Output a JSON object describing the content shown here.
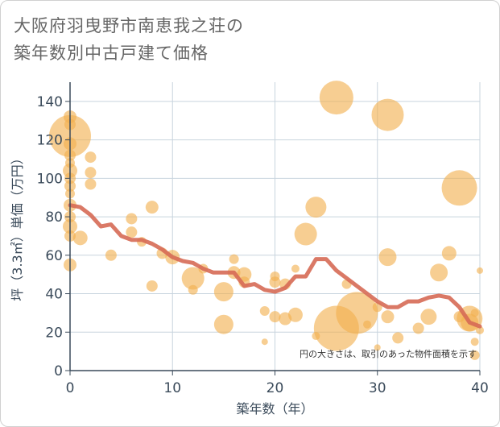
{
  "title_lines": [
    "大阪府羽曳野市南恵我之荘の",
    "築年数別中古戸建て価格"
  ],
  "chart_data": {
    "type": "scatter",
    "title": "大阪府羽曳野市南恵我之荘の築年数別中古戸建て価格",
    "xlabel": "築年数（年）",
    "ylabel": "坪（3.3㎡）単価（万円）",
    "note": "円の大きさは、取引のあった物件面積を示す",
    "xlim": [
      0,
      40
    ],
    "ylim": [
      0,
      150
    ],
    "xticks": [
      0,
      10,
      20,
      30,
      40
    ],
    "yticks": [
      0,
      20,
      40,
      60,
      80,
      100,
      120,
      140
    ],
    "grid": true,
    "colors": {
      "bubble": "#f2b04f",
      "line": "#d66a55",
      "grid": "#c8d4de",
      "axis": "#3a4a5a"
    },
    "points": [
      {
        "x": 0,
        "y": 132,
        "s": 8
      },
      {
        "x": 0,
        "y": 128,
        "s": 7
      },
      {
        "x": 0,
        "y": 122,
        "s": 26
      },
      {
        "x": 0,
        "y": 118,
        "s": 8
      },
      {
        "x": 0,
        "y": 112,
        "s": 7
      },
      {
        "x": 0,
        "y": 108,
        "s": 6
      },
      {
        "x": 0,
        "y": 104,
        "s": 9
      },
      {
        "x": 0,
        "y": 100,
        "s": 7
      },
      {
        "x": 0,
        "y": 96,
        "s": 7
      },
      {
        "x": 0,
        "y": 92,
        "s": 6
      },
      {
        "x": 0,
        "y": 86,
        "s": 8
      },
      {
        "x": 0,
        "y": 80,
        "s": 7
      },
      {
        "x": 0,
        "y": 75,
        "s": 9
      },
      {
        "x": 0,
        "y": 70,
        "s": 7
      },
      {
        "x": 0,
        "y": 55,
        "s": 8
      },
      {
        "x": 1,
        "y": 69,
        "s": 9
      },
      {
        "x": 2,
        "y": 111,
        "s": 7
      },
      {
        "x": 2,
        "y": 103,
        "s": 7
      },
      {
        "x": 2,
        "y": 97,
        "s": 7
      },
      {
        "x": 4,
        "y": 60,
        "s": 7
      },
      {
        "x": 6,
        "y": 79,
        "s": 7
      },
      {
        "x": 6,
        "y": 72,
        "s": 7
      },
      {
        "x": 7,
        "y": 67,
        "s": 6
      },
      {
        "x": 8,
        "y": 85,
        "s": 8
      },
      {
        "x": 8,
        "y": 44,
        "s": 7
      },
      {
        "x": 9,
        "y": 61,
        "s": 7
      },
      {
        "x": 10,
        "y": 59,
        "s": 9
      },
      {
        "x": 12,
        "y": 48,
        "s": 14
      },
      {
        "x": 12,
        "y": 42,
        "s": 6
      },
      {
        "x": 13,
        "y": 53,
        "s": 6
      },
      {
        "x": 15,
        "y": 41,
        "s": 12
      },
      {
        "x": 15,
        "y": 24,
        "s": 12
      },
      {
        "x": 16,
        "y": 58,
        "s": 6
      },
      {
        "x": 16,
        "y": 51,
        "s": 8
      },
      {
        "x": 17,
        "y": 50,
        "s": 9
      },
      {
        "x": 17,
        "y": 46,
        "s": 7
      },
      {
        "x": 19,
        "y": 31,
        "s": 6
      },
      {
        "x": 19,
        "y": 15,
        "s": 4
      },
      {
        "x": 20,
        "y": 49,
        "s": 6
      },
      {
        "x": 20,
        "y": 46,
        "s": 7
      },
      {
        "x": 20,
        "y": 28,
        "s": 7
      },
      {
        "x": 21,
        "y": 45,
        "s": 7
      },
      {
        "x": 21,
        "y": 27,
        "s": 8
      },
      {
        "x": 22,
        "y": 53,
        "s": 5
      },
      {
        "x": 22,
        "y": 29,
        "s": 9
      },
      {
        "x": 23,
        "y": 71,
        "s": 14
      },
      {
        "x": 24,
        "y": 85,
        "s": 13
      },
      {
        "x": 24,
        "y": 18,
        "s": 5
      },
      {
        "x": 26,
        "y": 142,
        "s": 21
      },
      {
        "x": 26,
        "y": 22,
        "s": 28
      },
      {
        "x": 27,
        "y": 45,
        "s": 6
      },
      {
        "x": 28,
        "y": 30,
        "s": 26
      },
      {
        "x": 29,
        "y": 24,
        "s": 5
      },
      {
        "x": 30,
        "y": 33,
        "s": 6
      },
      {
        "x": 30,
        "y": 12,
        "s": 4
      },
      {
        "x": 31,
        "y": 133,
        "s": 20
      },
      {
        "x": 31,
        "y": 59,
        "s": 11
      },
      {
        "x": 31,
        "y": 28,
        "s": 8
      },
      {
        "x": 32,
        "y": 17,
        "s": 7
      },
      {
        "x": 34,
        "y": 22,
        "s": 7
      },
      {
        "x": 35,
        "y": 28,
        "s": 10
      },
      {
        "x": 36,
        "y": 51,
        "s": 11
      },
      {
        "x": 37,
        "y": 61,
        "s": 9
      },
      {
        "x": 38,
        "y": 28,
        "s": 7
      },
      {
        "x": 38,
        "y": 95,
        "s": 22
      },
      {
        "x": 39,
        "y": 25,
        "s": 11
      },
      {
        "x": 39,
        "y": 27,
        "s": 16
      },
      {
        "x": 39.5,
        "y": 30,
        "s": 5
      },
      {
        "x": 39.5,
        "y": 15,
        "s": 5
      },
      {
        "x": 39.5,
        "y": 8,
        "s": 6
      },
      {
        "x": 40,
        "y": 52,
        "s": 4
      },
      {
        "x": 40,
        "y": 21,
        "s": 5
      }
    ],
    "series": [
      {
        "x": [
          0,
          1,
          2,
          3,
          4,
          5,
          6,
          7,
          8,
          9,
          10,
          11,
          12,
          13,
          14,
          15,
          16,
          17,
          18,
          19,
          20,
          21,
          22,
          23,
          24,
          25,
          26,
          27,
          28,
          29,
          30,
          31,
          32,
          33,
          34,
          35,
          36,
          37,
          38,
          39,
          40
        ],
        "values": [
          86,
          85,
          81,
          75,
          76,
          70,
          68,
          68,
          66,
          63,
          59,
          57,
          56,
          53,
          51,
          51,
          51,
          44,
          45,
          42,
          41,
          43,
          49,
          49,
          58,
          58,
          52,
          48,
          44,
          40,
          36,
          33,
          33,
          36,
          36,
          38,
          39,
          38,
          33,
          25,
          23
        ]
      }
    ]
  }
}
